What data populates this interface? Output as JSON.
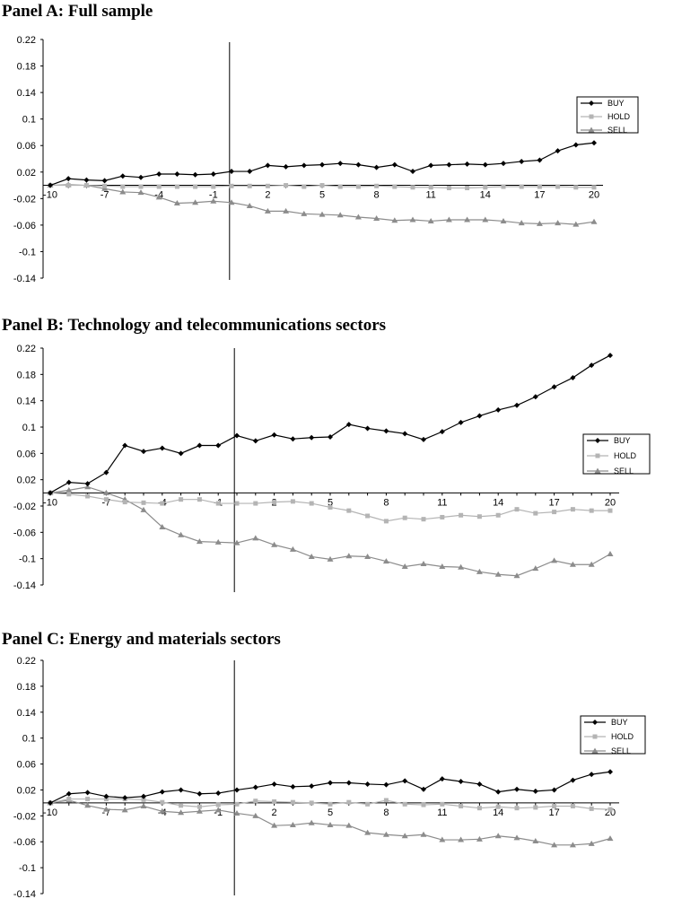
{
  "chart_data": [
    {
      "type": "line",
      "title": "Panel A: Full sample",
      "xlabel": "",
      "ylabel": "",
      "x": [
        -10,
        -9,
        -8,
        -7,
        -6,
        -5,
        -4,
        -3,
        -2,
        -1,
        0,
        1,
        2,
        3,
        4,
        5,
        6,
        7,
        8,
        9,
        10,
        11,
        12,
        13,
        14,
        15,
        16,
        17,
        18,
        19,
        20
      ],
      "x_tick_labels": [
        "-10",
        "-7",
        "-4",
        "-1",
        "2",
        "5",
        "8",
        "11",
        "14",
        "17",
        "20"
      ],
      "y_tick_labels": [
        "0.22",
        "0.18",
        "0.14",
        "0.1",
        "0.06",
        "0.02",
        "-0.02",
        "-0.06",
        "-0.1",
        "-0.14"
      ],
      "ylim": [
        -0.14,
        0.22
      ],
      "event_line_x": -1,
      "legend_position": "right",
      "grid": false,
      "series": [
        {
          "name": "BUY",
          "color": "#000000",
          "marker": "diamond",
          "values": [
            0,
            0.01,
            0.008,
            0.007,
            0.014,
            0.012,
            0.017,
            0.017,
            0.016,
            0.017,
            0.021,
            0.021,
            0.03,
            0.028,
            0.03,
            0.031,
            0.033,
            0.031,
            0.027,
            0.031,
            0.021,
            0.03,
            0.031,
            0.032,
            0.031,
            0.033,
            0.036,
            0.038,
            0.052,
            0.061,
            0.064
          ]
        },
        {
          "name": "HOLD",
          "color": "#b4b4b4",
          "marker": "square",
          "values": [
            0,
            0,
            0,
            -0.001,
            -0.002,
            -0.002,
            -0.002,
            -0.002,
            -0.002,
            -0.002,
            -0.001,
            -0.001,
            -0.001,
            0,
            -0.002,
            0,
            -0.002,
            -0.002,
            -0.001,
            -0.002,
            -0.003,
            -0.003,
            -0.004,
            -0.004,
            -0.003,
            -0.002,
            -0.002,
            -0.002,
            -0.002,
            -0.003,
            -0.003
          ]
        },
        {
          "name": "SELL",
          "color": "#8c8c8c",
          "marker": "triangle",
          "values": [
            0,
            0.001,
            0,
            -0.005,
            -0.01,
            -0.011,
            -0.018,
            -0.027,
            -0.026,
            -0.024,
            -0.026,
            -0.031,
            -0.039,
            -0.039,
            -0.043,
            -0.044,
            -0.045,
            -0.048,
            -0.05,
            -0.053,
            -0.052,
            -0.054,
            -0.052,
            -0.052,
            -0.052,
            -0.054,
            -0.057,
            -0.058,
            -0.057,
            -0.059,
            -0.055
          ]
        }
      ]
    },
    {
      "type": "line",
      "title": "Panel B: Technology and telecommunications sectors",
      "xlabel": "",
      "ylabel": "",
      "x": [
        -10,
        -9,
        -8,
        -7,
        -6,
        -5,
        -4,
        -3,
        -2,
        -1,
        0,
        1,
        2,
        3,
        4,
        5,
        6,
        7,
        8,
        9,
        10,
        11,
        12,
        13,
        14,
        15,
        16,
        17,
        18,
        19,
        20
      ],
      "x_tick_labels": [
        "-10",
        "-7",
        "-4",
        "-1",
        "2",
        "5",
        "8",
        "11",
        "14",
        "17",
        "20"
      ],
      "y_tick_labels": [
        "0.22",
        "0.18",
        "0.14",
        "0.1",
        "0.06",
        "0.02",
        "-0.02",
        "-0.06",
        "-0.1",
        "-0.14"
      ],
      "ylim": [
        -0.14,
        0.22
      ],
      "event_line_x": -1,
      "legend_position": "right",
      "grid": false,
      "series": [
        {
          "name": "BUY",
          "color": "#000000",
          "marker": "diamond",
          "values": [
            0,
            0.016,
            0.014,
            0.031,
            0.072,
            0.063,
            0.068,
            0.06,
            0.072,
            0.072,
            0.087,
            0.079,
            0.088,
            0.082,
            0.084,
            0.085,
            0.104,
            0.098,
            0.094,
            0.09,
            0.081,
            0.093,
            0.107,
            0.117,
            0.126,
            0.133,
            0.146,
            0.161,
            0.175,
            0.194,
            0.209
          ]
        },
        {
          "name": "HOLD",
          "color": "#b4b4b4",
          "marker": "square",
          "values": [
            0,
            -0.002,
            -0.005,
            -0.01,
            -0.014,
            -0.015,
            -0.016,
            -0.01,
            -0.01,
            -0.016,
            -0.016,
            -0.016,
            -0.014,
            -0.013,
            -0.016,
            -0.022,
            -0.027,
            -0.035,
            -0.043,
            -0.038,
            -0.04,
            -0.037,
            -0.034,
            -0.036,
            -0.034,
            -0.025,
            -0.031,
            -0.029,
            -0.025,
            -0.027,
            -0.027
          ]
        },
        {
          "name": "SELL",
          "color": "#8c8c8c",
          "marker": "triangle",
          "values": [
            0,
            0.004,
            0.009,
            0,
            -0.01,
            -0.026,
            -0.052,
            -0.064,
            -0.074,
            -0.075,
            -0.076,
            -0.069,
            -0.079,
            -0.086,
            -0.097,
            -0.101,
            -0.096,
            -0.097,
            -0.104,
            -0.112,
            -0.108,
            -0.112,
            -0.113,
            -0.12,
            -0.124,
            -0.126,
            -0.115,
            -0.103,
            -0.109,
            -0.109,
            -0.093
          ]
        }
      ]
    },
    {
      "type": "line",
      "title": "Panel C: Energy and materials sectors",
      "xlabel": "",
      "ylabel": "",
      "x": [
        -10,
        -9,
        -8,
        -7,
        -6,
        -5,
        -4,
        -3,
        -2,
        -1,
        0,
        1,
        2,
        3,
        4,
        5,
        6,
        7,
        8,
        9,
        10,
        11,
        12,
        13,
        14,
        15,
        16,
        17,
        18,
        19,
        20
      ],
      "x_tick_labels": [
        "-10",
        "-7",
        "-4",
        "-1",
        "2",
        "5",
        "8",
        "11",
        "14",
        "17",
        "20"
      ],
      "y_tick_labels": [
        "0.22",
        "0.18",
        "0.14",
        "0.1",
        "0.06",
        "0.02",
        "-0.02",
        "-0.06",
        "-0.1",
        "-0.14"
      ],
      "ylim": [
        -0.14,
        0.22
      ],
      "event_line_x": -1,
      "legend_position": "right",
      "grid": false,
      "series": [
        {
          "name": "BUY",
          "color": "#000000",
          "marker": "diamond",
          "values": [
            0,
            0.014,
            0.016,
            0.01,
            0.008,
            0.01,
            0.017,
            0.02,
            0.014,
            0.015,
            0.02,
            0.024,
            0.029,
            0.025,
            0.026,
            0.031,
            0.031,
            0.029,
            0.028,
            0.034,
            0.021,
            0.037,
            0.033,
            0.029,
            0.017,
            0.021,
            0.018,
            0.02,
            0.035,
            0.044,
            0.048
          ]
        },
        {
          "name": "HOLD",
          "color": "#b4b4b4",
          "marker": "square",
          "values": [
            0,
            0.006,
            0.006,
            0.006,
            0.006,
            0.005,
            0.001,
            -0.004,
            -0.006,
            -0.003,
            -0.002,
            0.003,
            0.002,
            0.001,
            0,
            -0.002,
            0.001,
            -0.002,
            0.004,
            -0.002,
            -0.003,
            -0.002,
            -0.005,
            -0.008,
            -0.006,
            -0.008,
            -0.007,
            -0.005,
            -0.005,
            -0.009,
            -0.01
          ]
        },
        {
          "name": "SELL",
          "color": "#8c8c8c",
          "marker": "triangle",
          "values": [
            0,
            0.004,
            -0.004,
            -0.01,
            -0.011,
            -0.005,
            -0.013,
            -0.015,
            -0.013,
            -0.011,
            -0.016,
            -0.02,
            -0.035,
            -0.034,
            -0.031,
            -0.034,
            -0.035,
            -0.046,
            -0.049,
            -0.051,
            -0.049,
            -0.057,
            -0.057,
            -0.056,
            -0.051,
            -0.054,
            -0.059,
            -0.065,
            -0.065,
            -0.063,
            -0.055
          ]
        }
      ]
    }
  ]
}
